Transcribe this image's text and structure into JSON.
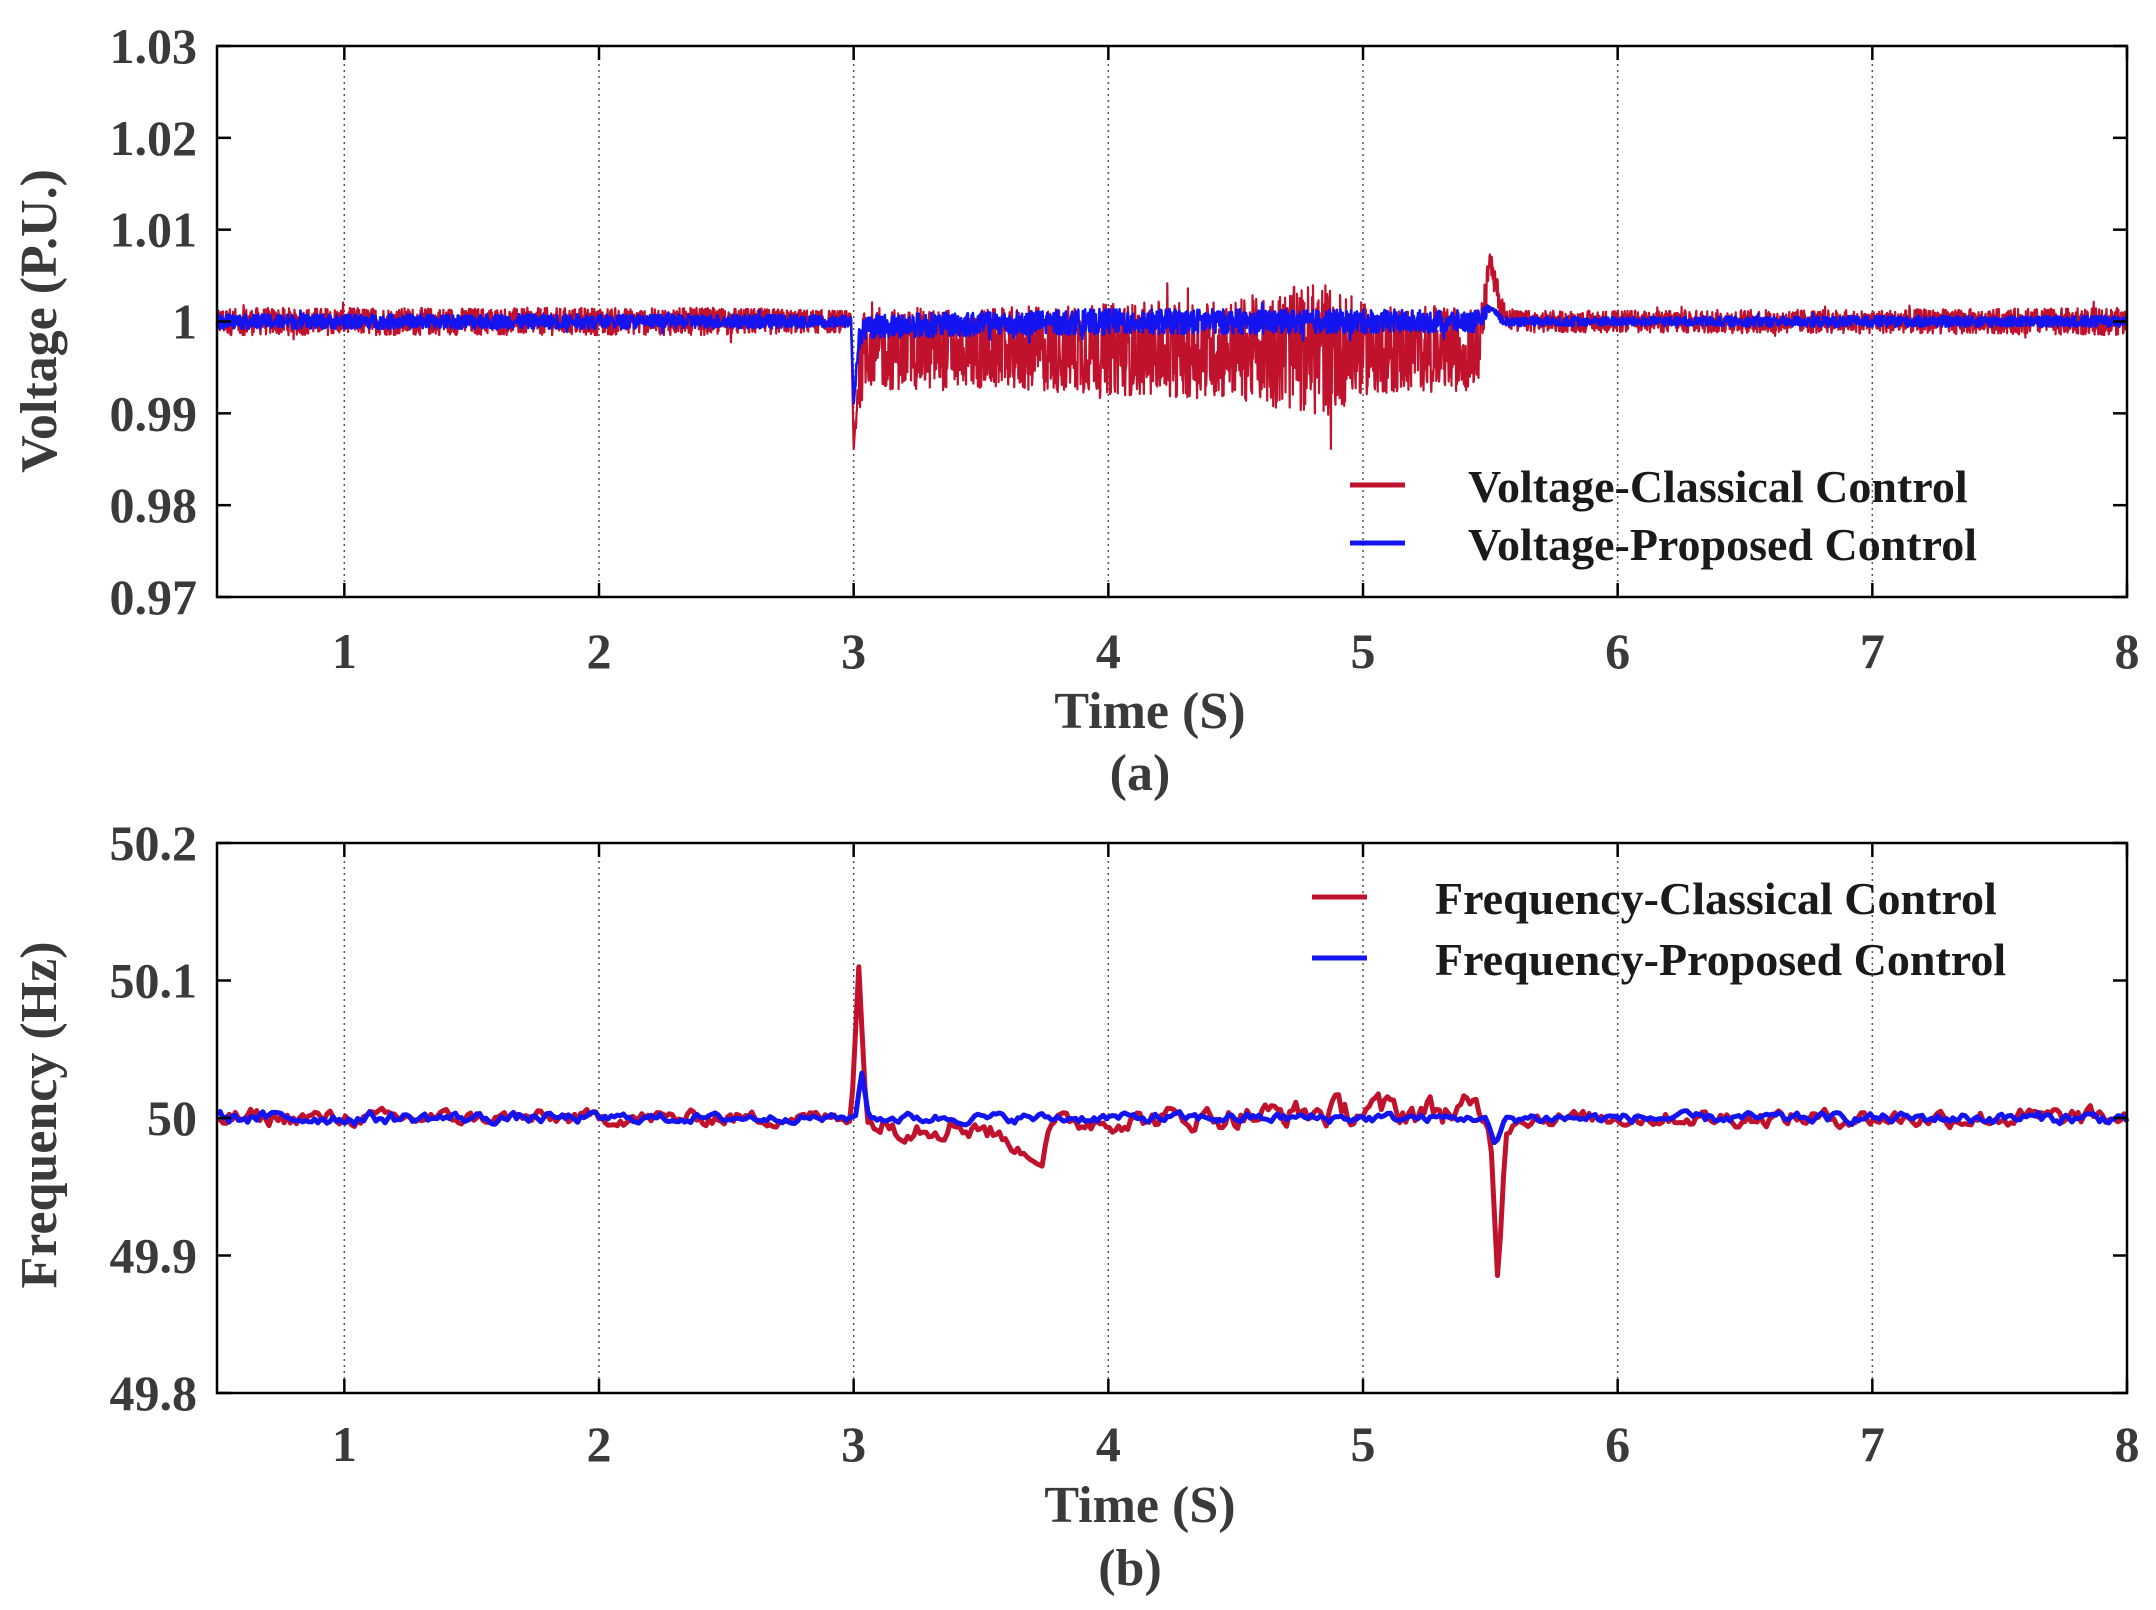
{
  "colors": {
    "classical": "#c0122c",
    "proposed": "#1414f0"
  },
  "chart_data": [
    {
      "type": "line",
      "panel_label": "(a)",
      "xlabel": "Time (S)",
      "ylabel": "Voltage (P.U.)",
      "xlim": [
        0.5,
        8
      ],
      "ylim": [
        0.97,
        1.03
      ],
      "xticks": [
        1,
        2,
        3,
        4,
        5,
        6,
        7,
        8
      ],
      "yticks": [
        0.97,
        0.98,
        0.99,
        1,
        1.01,
        1.02,
        1.03
      ],
      "ytick_labels": [
        "0.97",
        "0.98",
        "0.99",
        "1",
        "1.01",
        "1.02",
        "1.03"
      ],
      "grid": "x-dotted",
      "legend_position": "bottom-right",
      "series": [
        {
          "name": "Voltage-Classical Control",
          "color_key": "classical",
          "x": [
            0.5,
            1.0,
            1.5,
            2.0,
            2.5,
            2.99,
            3.0,
            3.02,
            3.05,
            3.1,
            3.5,
            4.0,
            4.5,
            4.85,
            5.0,
            5.45,
            5.5,
            5.52,
            5.55,
            5.6,
            6.0,
            6.5,
            7.0,
            7.5,
            8.0
          ],
          "center": [
            1.0,
            1.0,
            1.0,
            1.0,
            1.0,
            1.0,
            0.986,
            0.994,
            0.998,
            0.997,
            0.997,
            0.997,
            0.997,
            0.997,
            0.997,
            0.997,
            1.0065,
            1.004,
            1.001,
            1.0,
            1.0,
            1.0,
            1.0,
            1.0,
            1.0
          ],
          "amplitude": [
            0.0015,
            0.0015,
            0.0015,
            0.0015,
            0.0015,
            0.0012,
            0.0,
            0.004,
            0.005,
            0.0045,
            0.0045,
            0.005,
            0.0055,
            0.0075,
            0.005,
            0.0045,
            0.0012,
            0.0015,
            0.0015,
            0.0012,
            0.0012,
            0.0013,
            0.0013,
            0.0014,
            0.0015
          ]
        },
        {
          "name": "Voltage-Proposed Control",
          "color_key": "proposed",
          "x": [
            0.5,
            1.0,
            2.0,
            2.99,
            3.0,
            3.02,
            3.05,
            4.0,
            5.0,
            5.45,
            5.5,
            5.55,
            6.0,
            7.0,
            8.0
          ],
          "center": [
            1.0,
            1.0,
            1.0,
            1.0,
            0.991,
            0.998,
            0.9995,
            1.0,
            1.0,
            1.0,
            1.0015,
            1.0,
            1.0,
            1.0,
            1.0
          ],
          "amplitude": [
            0.0008,
            0.0008,
            0.0008,
            0.0007,
            0.0,
            0.0012,
            0.0013,
            0.0014,
            0.0013,
            0.0012,
            0.0004,
            0.0005,
            0.0005,
            0.0006,
            0.0006
          ]
        }
      ]
    },
    {
      "type": "line",
      "panel_label": "(b)",
      "xlabel": "Time (S)",
      "ylabel": "Frequency (Hz)",
      "xlim": [
        0.5,
        8
      ],
      "ylim": [
        49.8,
        50.2
      ],
      "xticks": [
        1,
        2,
        3,
        4,
        5,
        6,
        7,
        8
      ],
      "yticks": [
        49.8,
        49.9,
        50,
        50.1,
        50.2
      ],
      "ytick_labels": [
        "49.8",
        "49.9",
        "50",
        "50.1",
        "50.2"
      ],
      "grid": "x-dotted",
      "legend_position": "top-right",
      "series": [
        {
          "name": "Frequency-Classical Control",
          "color_key": "classical",
          "x": [
            0.5,
            1.0,
            2.0,
            2.95,
            2.99,
            3.02,
            3.05,
            3.1,
            3.5,
            3.74,
            3.76,
            4.0,
            5.0,
            5.45,
            5.5,
            5.53,
            5.56,
            5.6,
            6.0,
            7.0,
            8.0
          ],
          "center": [
            50.0,
            50.0,
            50.0,
            50.0,
            50.0,
            50.11,
            50.0,
            49.995,
            49.995,
            49.965,
            49.995,
            49.998,
            50.005,
            50.005,
            49.99,
            49.878,
            49.99,
            50.0,
            50.0,
            50.0,
            50.0
          ],
          "amplitude": [
            0.008,
            0.006,
            0.006,
            0.006,
            0.003,
            0.0,
            0.004,
            0.01,
            0.01,
            0.0,
            0.008,
            0.008,
            0.012,
            0.012,
            0.0,
            0.0,
            0.004,
            0.006,
            0.006,
            0.007,
            0.008
          ]
        },
        {
          "name": "Frequency-Proposed Control",
          "color_key": "proposed",
          "x": [
            0.5,
            1.0,
            2.0,
            2.98,
            3.01,
            3.03,
            3.06,
            3.1,
            4.0,
            5.0,
            5.48,
            5.52,
            5.56,
            5.6,
            6.0,
            7.0,
            8.0
          ],
          "center": [
            50.0,
            50.0,
            50.0,
            50.0,
            50.002,
            50.035,
            50.0,
            50.0,
            50.0,
            50.0,
            50.0,
            49.98,
            50.0,
            50.0,
            50.0,
            50.0,
            50.0
          ],
          "amplitude": [
            0.005,
            0.005,
            0.004,
            0.003,
            0.0,
            0.0,
            0.0,
            0.004,
            0.004,
            0.004,
            0.003,
            0.0,
            0.002,
            0.004,
            0.004,
            0.004,
            0.005
          ]
        }
      ]
    }
  ]
}
